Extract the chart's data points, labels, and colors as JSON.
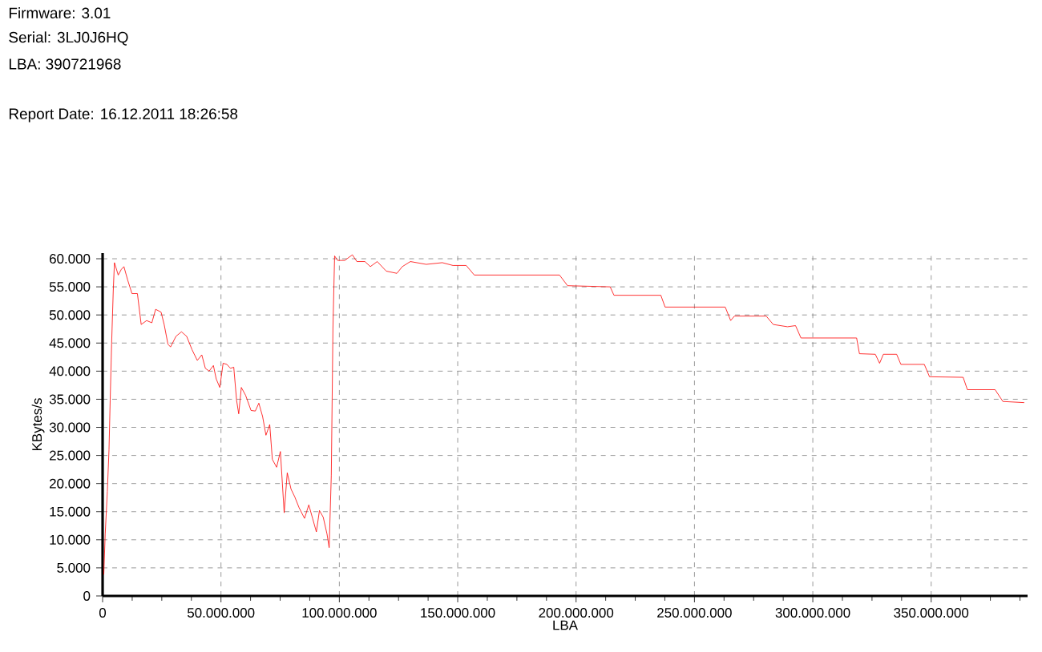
{
  "chart_data": {
    "type": "line",
    "annotations": [
      "Firmware: 3.01",
      "Serial: 3LJ0J6HQ",
      "LBA: 390721968",
      "Report Date: 16.12.2011 18:26:58"
    ],
    "xlabel": "LBA",
    "ylabel": "KBytes/s",
    "x": [
      500000,
      1100000,
      2000000,
      2700000,
      3200000,
      3800000,
      4500000,
      5000000,
      6600000,
      7900000,
      9000000,
      10600000,
      12400000,
      14700000,
      16300000,
      18600000,
      20800000,
      22400000,
      24700000,
      26000000,
      27600000,
      28700000,
      31000000,
      33300000,
      35500000,
      37800000,
      40000000,
      41900000,
      43400000,
      45000000,
      46800000,
      48000000,
      49500000,
      50900000,
      52500000,
      54000000,
      55400000,
      56600000,
      57500000,
      58600000,
      60400000,
      62700000,
      64500000,
      66000000,
      67600000,
      69000000,
      70600000,
      71700000,
      73500000,
      75100000,
      76700000,
      78000000,
      79600000,
      81200000,
      83000000,
      85300000,
      87100000,
      88700000,
      90300000,
      91600000,
      93200000,
      94800000,
      95700000,
      96600000,
      97300000,
      98000000,
      99300000,
      102300000,
      105500000,
      107400000,
      110800000,
      113100000,
      116000000,
      119800000,
      124300000,
      126600000,
      130000000,
      136700000,
      143500000,
      148000000,
      153600000,
      157000000,
      193000000,
      196400000,
      214400000,
      216000000,
      235800000,
      237600000,
      263000000,
      265300000,
      266900000,
      280300000,
      283300000,
      289300000,
      292700000,
      295000000,
      318500000,
      319700000,
      326400000,
      328200000,
      329800000,
      335400000,
      337200000,
      347100000,
      349300000,
      363500000,
      365300000,
      377000000,
      380300000,
      389300000
    ],
    "series": [
      {
        "color": "#ff0000",
        "values": [
          3800,
          11000,
          18600,
          26000,
          34800,
          44800,
          54300,
          59300,
          57100,
          58100,
          58600,
          56200,
          53800,
          53800,
          48300,
          49000,
          48600,
          51000,
          50500,
          48300,
          44800,
          44300,
          46200,
          47000,
          46200,
          43800,
          41900,
          42900,
          40500,
          40000,
          41000,
          38600,
          37100,
          41400,
          41200,
          40500,
          40700,
          34800,
          32400,
          37100,
          35700,
          33000,
          32900,
          34300,
          31900,
          28600,
          30500,
          24300,
          22900,
          25700,
          14800,
          21900,
          19000,
          17600,
          15700,
          13800,
          16200,
          13800,
          11400,
          15200,
          14000,
          11000,
          8600,
          21400,
          47600,
          60500,
          59700,
          59700,
          60700,
          59500,
          59500,
          58600,
          59500,
          57800,
          57400,
          58600,
          59500,
          59000,
          59300,
          58800,
          58800,
          57100,
          57100,
          55200,
          55000,
          53500,
          53500,
          51400,
          51400,
          49000,
          49800,
          49800,
          48300,
          47900,
          48100,
          45900,
          45900,
          43100,
          43000,
          41400,
          43000,
          43000,
          41200,
          41200,
          39000,
          38900,
          36700,
          36700,
          34600,
          34400
        ]
      }
    ],
    "xlim": [
      0,
      390721968
    ],
    "ylim": [
      0,
      61000
    ],
    "xticks": [
      {
        "value": 0,
        "label": "0"
      },
      {
        "value": 12500000,
        "label": null
      },
      {
        "value": 25000000,
        "label": null
      },
      {
        "value": 37500000,
        "label": null
      },
      {
        "value": 50000000,
        "label": "50.000.000"
      },
      {
        "value": 62500000,
        "label": null
      },
      {
        "value": 75000000,
        "label": null
      },
      {
        "value": 87500000,
        "label": null
      },
      {
        "value": 100000000,
        "label": "100.000.000"
      },
      {
        "value": 112500000,
        "label": null
      },
      {
        "value": 125000000,
        "label": null
      },
      {
        "value": 137500000,
        "label": null
      },
      {
        "value": 150000000,
        "label": "150.000.000"
      },
      {
        "value": 162500000,
        "label": null
      },
      {
        "value": 175000000,
        "label": null
      },
      {
        "value": 187500000,
        "label": null
      },
      {
        "value": 200000000,
        "label": "200.000.000"
      },
      {
        "value": 212500000,
        "label": null
      },
      {
        "value": 225000000,
        "label": null
      },
      {
        "value": 237500000,
        "label": null
      },
      {
        "value": 250000000,
        "label": "250.000.000"
      },
      {
        "value": 262500000,
        "label": null
      },
      {
        "value": 275000000,
        "label": null
      },
      {
        "value": 287500000,
        "label": null
      },
      {
        "value": 300000000,
        "label": "300.000.000"
      },
      {
        "value": 312500000,
        "label": null
      },
      {
        "value": 325000000,
        "label": null
      },
      {
        "value": 337500000,
        "label": null
      },
      {
        "value": 350000000,
        "label": "350.000.000"
      },
      {
        "value": 362500000,
        "label": null
      },
      {
        "value": 375000000,
        "label": null
      },
      {
        "value": 387500000,
        "label": null
      }
    ],
    "yticks": [
      {
        "value": 0,
        "label": "0"
      },
      {
        "value": 5000,
        "label": "5.000"
      },
      {
        "value": 10000,
        "label": "10.000"
      },
      {
        "value": 15000,
        "label": "15.000"
      },
      {
        "value": 20000,
        "label": "20.000"
      },
      {
        "value": 25000,
        "label": "25.000"
      },
      {
        "value": 30000,
        "label": "30.000"
      },
      {
        "value": 35000,
        "label": "35.000"
      },
      {
        "value": 40000,
        "label": "40.000"
      },
      {
        "value": 45000,
        "label": "45.000"
      },
      {
        "value": 50000,
        "label": "50.000"
      },
      {
        "value": 55000,
        "label": "55.000"
      },
      {
        "value": 60000,
        "label": "60.000"
      }
    ],
    "grid": true,
    "marker": "none",
    "line_style": "solid"
  }
}
